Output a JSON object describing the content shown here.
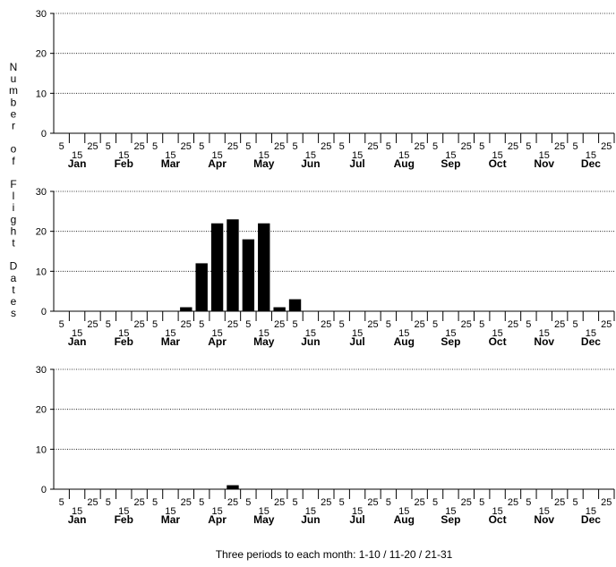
{
  "chart_data": {
    "type": "bar",
    "ylabel": "Number of Flight Dates",
    "xlabel": "Three periods to each month: 1-10 / 11-20 / 21-31",
    "months": [
      "Jan",
      "Feb",
      "Mar",
      "Apr",
      "May",
      "Jun",
      "Jul",
      "Aug",
      "Sep",
      "Oct",
      "Nov",
      "Dec"
    ],
    "period_labels": [
      "5",
      "15",
      "25"
    ],
    "ylim": [
      0,
      30
    ],
    "yticks": [
      0,
      10,
      20,
      30
    ],
    "grid": true,
    "panels": [
      {
        "values": [
          0,
          0,
          0,
          0,
          0,
          0,
          0,
          0,
          0,
          0,
          0,
          0,
          0,
          0,
          0,
          0,
          0,
          0,
          0,
          0,
          0,
          0,
          0,
          0,
          0,
          0,
          0,
          0,
          0,
          0,
          0,
          0,
          0,
          0,
          0,
          0
        ]
      },
      {
        "values": [
          0,
          0,
          0,
          0,
          0,
          0,
          0,
          0,
          1,
          12,
          22,
          23,
          18,
          22,
          1,
          3,
          0,
          0,
          0,
          0,
          0,
          0,
          0,
          0,
          0,
          0,
          0,
          0,
          0,
          0,
          0,
          0,
          0,
          0,
          0,
          0
        ]
      },
      {
        "values": [
          0,
          0,
          0,
          0,
          0,
          0,
          0,
          0,
          0,
          0,
          0,
          1,
          0,
          0,
          0,
          0,
          0,
          0,
          0,
          0,
          0,
          0,
          0,
          0,
          0,
          0,
          0,
          0,
          0,
          0,
          0,
          0,
          0,
          0,
          0,
          0
        ]
      }
    ]
  }
}
